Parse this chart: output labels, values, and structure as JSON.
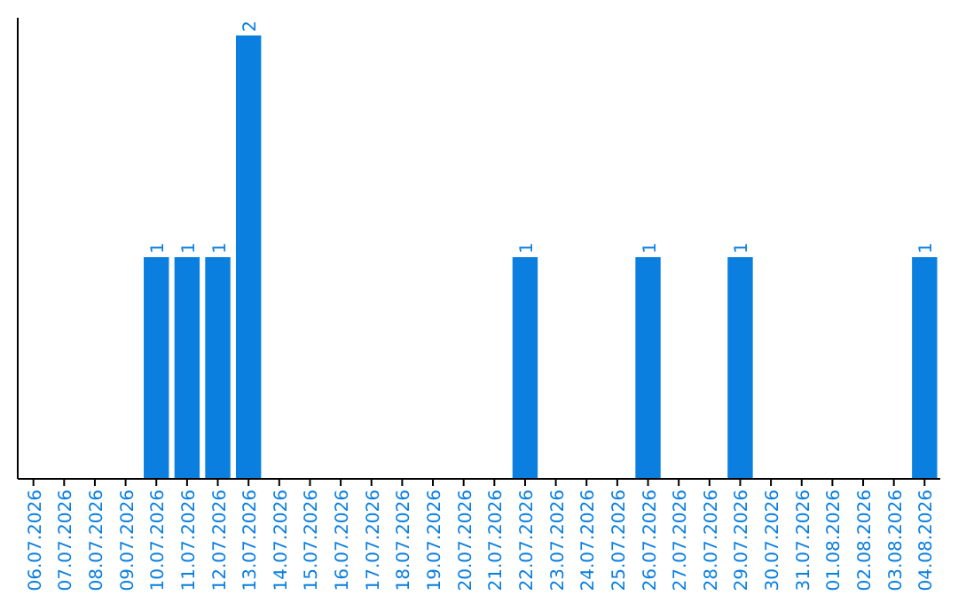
{
  "chart_data": {
    "type": "bar",
    "categories": [
      "06.07.2026",
      "07.07.2026",
      "08.07.2026",
      "09.07.2026",
      "10.07.2026",
      "11.07.2026",
      "12.07.2026",
      "13.07.2026",
      "14.07.2026",
      "15.07.2026",
      "16.07.2026",
      "17.07.2026",
      "18.07.2026",
      "19.07.2026",
      "20.07.2026",
      "21.07.2026",
      "22.07.2026",
      "23.07.2026",
      "24.07.2026",
      "25.07.2026",
      "26.07.2026",
      "27.07.2026",
      "28.07.2026",
      "29.07.2026",
      "30.07.2026",
      "31.07.2026",
      "01.08.2026",
      "02.08.2026",
      "03.08.2026",
      "04.08.2026"
    ],
    "values": [
      0,
      0,
      0,
      0,
      1,
      1,
      1,
      2,
      0,
      0,
      0,
      0,
      0,
      0,
      0,
      0,
      1,
      0,
      0,
      0,
      1,
      0,
      0,
      1,
      0,
      0,
      0,
      0,
      0,
      1
    ],
    "value_labels": [
      null,
      null,
      null,
      null,
      "1",
      "1",
      "1",
      "2",
      null,
      null,
      null,
      null,
      null,
      null,
      null,
      null,
      "1",
      null,
      null,
      null,
      "1",
      null,
      null,
      "1",
      null,
      null,
      null,
      null,
      null,
      "1"
    ],
    "color": "#0a7fe0",
    "ylim": [
      0,
      2
    ],
    "tick_labels": "x"
  }
}
